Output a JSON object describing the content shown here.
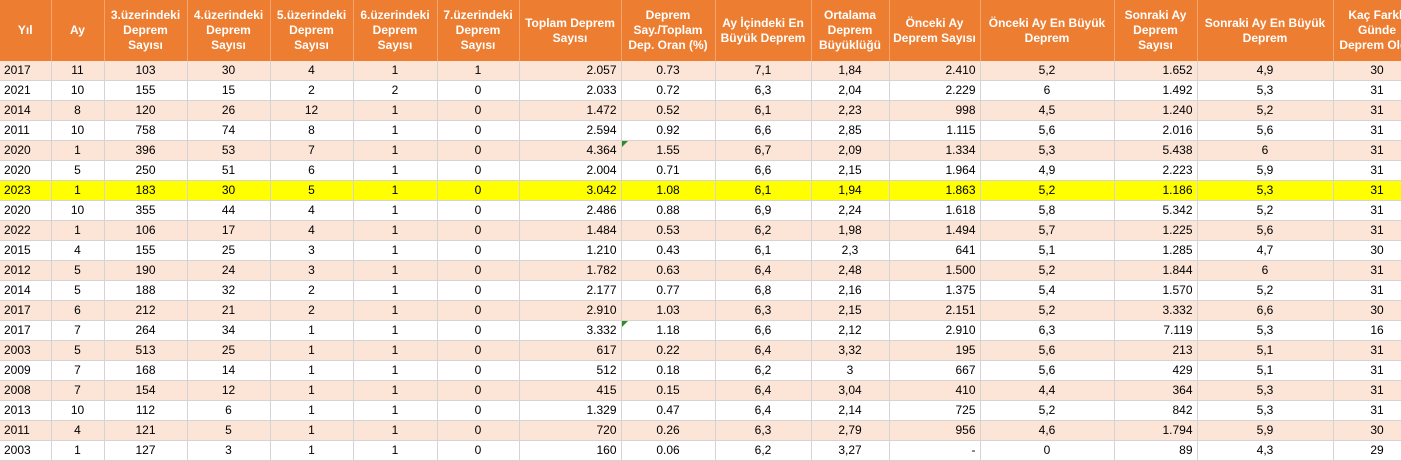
{
  "headers": [
    "Yıl",
    "Ay",
    "3.üzerindeki Deprem Sayısı",
    "4.üzerindeki Deprem Sayısı",
    "5.üzerindeki Deprem Sayısı",
    "6.üzerindeki Deprem Sayısı",
    "7.üzerindeki Deprem Sayısı",
    "Toplam Deprem Sayısı",
    "Deprem Say./Toplam Dep. Oran (%)",
    "Ay İçindeki En Büyük Deprem",
    "Ortalama Deprem Büyüklüğü",
    "Önceki Ay Deprem Sayısı",
    "Önceki Ay En Büyük Deprem",
    "Sonraki Ay Deprem Sayısı",
    "Sonraki Ay En Büyük Deprem",
    "Kaç Farklı Günde Deprem Oldu"
  ],
  "rows": [
    [
      "2017",
      "11",
      "103",
      "30",
      "4",
      "1",
      "1",
      "2.057",
      "0.73",
      "7,1",
      "1,84",
      "2.410",
      "5,2",
      "1.652",
      "4,9",
      "30"
    ],
    [
      "2021",
      "10",
      "155",
      "15",
      "2",
      "2",
      "0",
      "2.033",
      "0.72",
      "6,3",
      "2,04",
      "2.229",
      "6",
      "1.492",
      "5,3",
      "31"
    ],
    [
      "2014",
      "8",
      "120",
      "26",
      "12",
      "1",
      "0",
      "1.472",
      "0.52",
      "6,1",
      "2,23",
      "998",
      "4,5",
      "1.240",
      "5,2",
      "31"
    ],
    [
      "2011",
      "10",
      "758",
      "74",
      "8",
      "1",
      "0",
      "2.594",
      "0.92",
      "6,6",
      "2,85",
      "1.115",
      "5,6",
      "2.016",
      "5,6",
      "31"
    ],
    [
      "2020",
      "1",
      "396",
      "53",
      "7",
      "1",
      "0",
      "4.364",
      "1.55",
      "6,7",
      "2,09",
      "1.334",
      "5,3",
      "5.438",
      "6",
      "31"
    ],
    [
      "2020",
      "5",
      "250",
      "51",
      "6",
      "1",
      "0",
      "2.004",
      "0.71",
      "6,6",
      "2,15",
      "1.964",
      "4,9",
      "2.223",
      "5,9",
      "31"
    ],
    [
      "2023",
      "1",
      "183",
      "30",
      "5",
      "1",
      "0",
      "3.042",
      "1.08",
      "6,1",
      "1,94",
      "1.863",
      "5,2",
      "1.186",
      "5,3",
      "31"
    ],
    [
      "2020",
      "10",
      "355",
      "44",
      "4",
      "1",
      "0",
      "2.486",
      "0.88",
      "6,9",
      "2,24",
      "1.618",
      "5,8",
      "5.342",
      "5,2",
      "31"
    ],
    [
      "2022",
      "1",
      "106",
      "17",
      "4",
      "1",
      "0",
      "1.484",
      "0.53",
      "6,2",
      "1,98",
      "1.494",
      "5,7",
      "1.225",
      "5,6",
      "31"
    ],
    [
      "2015",
      "4",
      "155",
      "25",
      "3",
      "1",
      "0",
      "1.210",
      "0.43",
      "6,1",
      "2,3",
      "641",
      "5,1",
      "1.285",
      "4,7",
      "30"
    ],
    [
      "2012",
      "5",
      "190",
      "24",
      "3",
      "1",
      "0",
      "1.782",
      "0.63",
      "6,4",
      "2,48",
      "1.500",
      "5,2",
      "1.844",
      "6",
      "31"
    ],
    [
      "2014",
      "5",
      "188",
      "32",
      "2",
      "1",
      "0",
      "2.177",
      "0.77",
      "6,8",
      "2,16",
      "1.375",
      "5,4",
      "1.570",
      "5,2",
      "31"
    ],
    [
      "2017",
      "6",
      "212",
      "21",
      "2",
      "1",
      "0",
      "2.910",
      "1.03",
      "6,3",
      "2,15",
      "2.151",
      "5,2",
      "3.332",
      "6,6",
      "30"
    ],
    [
      "2017",
      "7",
      "264",
      "34",
      "1",
      "1",
      "0",
      "3.332",
      "1.18",
      "6,6",
      "2,12",
      "2.910",
      "6,3",
      "7.119",
      "5,3",
      "16"
    ],
    [
      "2003",
      "5",
      "513",
      "25",
      "1",
      "1",
      "0",
      "617",
      "0.22",
      "6,4",
      "3,32",
      "195",
      "5,6",
      "213",
      "5,1",
      "31"
    ],
    [
      "2009",
      "7",
      "168",
      "14",
      "1",
      "1",
      "0",
      "512",
      "0.18",
      "6,2",
      "3",
      "667",
      "5,6",
      "429",
      "5,1",
      "31"
    ],
    [
      "2008",
      "7",
      "154",
      "12",
      "1",
      "1",
      "0",
      "415",
      "0.15",
      "6,4",
      "3,04",
      "410",
      "4,4",
      "364",
      "5,3",
      "31"
    ],
    [
      "2013",
      "10",
      "112",
      "6",
      "1",
      "1",
      "0",
      "1.329",
      "0.47",
      "6,4",
      "2,14",
      "725",
      "5,2",
      "842",
      "5,3",
      "31"
    ],
    [
      "2011",
      "4",
      "121",
      "5",
      "1",
      "1",
      "0",
      "720",
      "0.26",
      "6,3",
      "2,79",
      "956",
      "4,6",
      "1.794",
      "5,9",
      "30"
    ],
    [
      "2003",
      "1",
      "127",
      "3",
      "1",
      "1",
      "0",
      "160",
      "0.06",
      "6,2",
      "3,27",
      "-",
      "0",
      "89",
      "4,3",
      "29"
    ]
  ],
  "highlight_row_index": 6,
  "marked_cells": [
    [
      4,
      8
    ],
    [
      13,
      8
    ]
  ],
  "colors": {
    "header_bg": "#ed7d31",
    "header_text": "#ffffff",
    "band_row": "#fce4d6",
    "highlight_row": "#ffff00",
    "error_triangle": "#2e8b2e"
  }
}
